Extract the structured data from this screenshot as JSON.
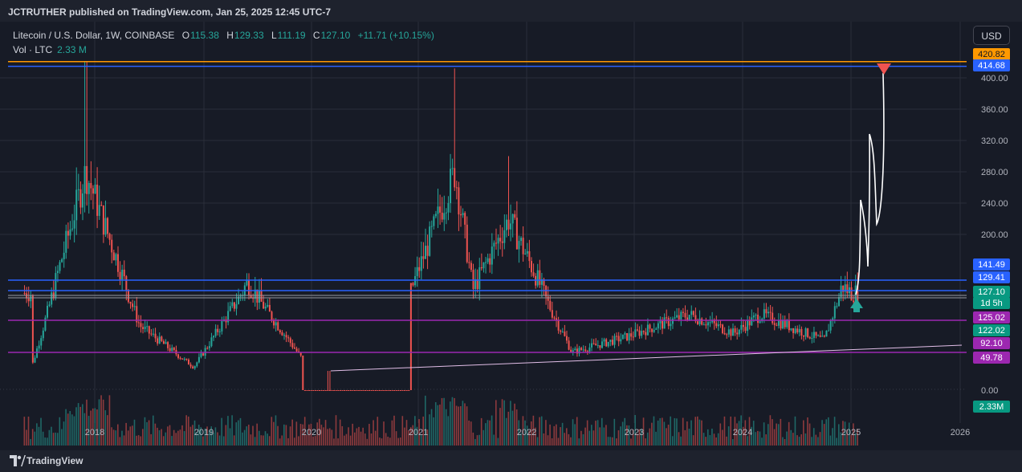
{
  "header": {
    "publish_line": "JCTRUTHER published on TradingView.com, Jan 25, 2025 12:45 UTC-7"
  },
  "legend": {
    "symbol": "Litecoin / U.S. Dollar, 1W, COINBASE",
    "open_label": "O",
    "open": "115.38",
    "high_label": "H",
    "high": "129.33",
    "low_label": "L",
    "low": "111.19",
    "close_label": "C",
    "close": "127.10",
    "change": "+11.71 (+10.15%)",
    "volume_label": "Vol · LTC",
    "volume": "2.33 M"
  },
  "currency_button": "USD",
  "footer": {
    "brand": "TradingView"
  },
  "colors": {
    "up": "#26a69a",
    "down": "#ef5350",
    "blue": "#2962ff",
    "purple": "#9c27b0",
    "orange": "#ff9800",
    "axis_text": "#b2b5be",
    "grid": "#2a2e39"
  },
  "chart_data": {
    "type": "candlestick",
    "symbol": "Litecoin / U.S. Dollar",
    "interval": "1W",
    "exchange": "COINBASE",
    "x_ticks": [
      "2018",
      "2019",
      "2020",
      "2021",
      "2022",
      "2023",
      "2024",
      "2025",
      "2026"
    ],
    "y_ticks": [
      0,
      400,
      360,
      320,
      280,
      240,
      200
    ],
    "y_tick_labels": [
      "0.00",
      "400.00",
      "360.00",
      "320.00",
      "280.00",
      "240.00",
      "200.00"
    ],
    "grid": true,
    "last_close": 127.1,
    "countdown": "1d 5h",
    "horizontal_levels": [
      {
        "price": 420.82,
        "label": "420.82",
        "color": "orange"
      },
      {
        "price": 414.68,
        "label": "414.68",
        "color": "blue"
      },
      {
        "price": 141.49,
        "label": "141.49",
        "color": "blue"
      },
      {
        "price": 129.41,
        "label": "129.41",
        "color": "blue"
      },
      {
        "price": 125.02,
        "label": "125.02",
        "color": "grey"
      },
      {
        "price": 122.02,
        "label": "122.02",
        "color": "grey"
      },
      {
        "price": 92.1,
        "label": "92.10",
        "color": "purple"
      },
      {
        "price": 49.78,
        "label": "49.78",
        "color": "purple"
      }
    ],
    "price_tags": [
      {
        "label": "420.82",
        "color": "orange"
      },
      {
        "label": "414.68",
        "color": "blue"
      },
      {
        "label": "141.49",
        "color": "blue"
      },
      {
        "label": "129.41",
        "color": "blue"
      },
      {
        "label": "127.10",
        "color": "green"
      },
      {
        "label": "1d 5h",
        "color": "green"
      },
      {
        "label": "125.02",
        "color": "purple"
      },
      {
        "label": "122.02",
        "color": "green"
      },
      {
        "label": "92.10",
        "color": "purple"
      },
      {
        "label": "49.78",
        "color": "purple"
      }
    ],
    "volume_tag": "2.33M",
    "annotations": [
      "red down arrow near 414.68 (2025)",
      "green up arrow near 129.41 (2025)",
      "white hand-drawn projected path"
    ],
    "key_points": [
      {
        "date": "2017-06",
        "close": 30
      },
      {
        "date": "2017-12",
        "high": 420.82,
        "close": 280
      },
      {
        "date": "2018-06",
        "close": 85
      },
      {
        "date": "2018-12",
        "close": 30
      },
      {
        "date": "2019-06",
        "close": 140
      },
      {
        "date": "2019-12",
        "close": 42
      },
      {
        "date": "2020-03",
        "low": 25
      },
      {
        "date": "2020-12",
        "close": 125
      },
      {
        "date": "2021-05",
        "high": 412,
        "close": 280
      },
      {
        "date": "2021-07",
        "close": 130
      },
      {
        "date": "2021-11",
        "high": 300,
        "close": 220
      },
      {
        "date": "2022-06",
        "close": 50
      },
      {
        "date": "2022-12",
        "close": 70
      },
      {
        "date": "2023-07",
        "close": 100
      },
      {
        "date": "2023-12",
        "close": 75
      },
      {
        "date": "2024-03",
        "close": 100
      },
      {
        "date": "2024-10",
        "close": 65
      },
      {
        "date": "2024-12",
        "close": 135
      },
      {
        "date": "2025-01",
        "close": 127.1
      }
    ]
  }
}
